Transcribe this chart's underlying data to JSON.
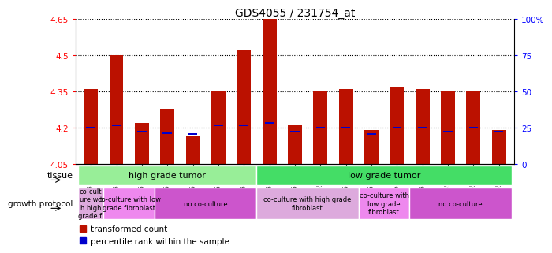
{
  "title": "GDS4055 / 231754_at",
  "samples": [
    "GSM665455",
    "GSM665447",
    "GSM665450",
    "GSM665452",
    "GSM665095",
    "GSM665102",
    "GSM665103",
    "GSM665071",
    "GSM665072",
    "GSM665073",
    "GSM665094",
    "GSM665069",
    "GSM665070",
    "GSM665042",
    "GSM665066",
    "GSM665067",
    "GSM665068"
  ],
  "red_values": [
    4.36,
    4.5,
    4.22,
    4.28,
    4.17,
    4.35,
    4.52,
    4.65,
    4.21,
    4.35,
    4.36,
    4.19,
    4.37,
    4.36,
    4.35,
    4.35,
    4.19
  ],
  "blue_values": [
    4.2,
    4.21,
    4.185,
    4.18,
    4.175,
    4.21,
    4.21,
    4.22,
    4.185,
    4.2,
    4.2,
    4.175,
    4.2,
    4.2,
    4.185,
    4.2,
    4.185
  ],
  "ymin": 4.05,
  "ymax": 4.65,
  "yticks": [
    4.05,
    4.2,
    4.35,
    4.5,
    4.65
  ],
  "right_yticks_pct": [
    0,
    25,
    50,
    75,
    100
  ],
  "right_yticklabels": [
    "0",
    "25",
    "50",
    "75",
    "100%"
  ],
  "tissue_groups": [
    {
      "label": "high grade tumor",
      "start": 0,
      "end": 7,
      "color": "#98EE98"
    },
    {
      "label": "low grade tumor",
      "start": 7,
      "end": 17,
      "color": "#44DD66"
    }
  ],
  "growth_groups": [
    {
      "label": "co-cult\nure wit\nh high\ngrade fi",
      "start": 0,
      "end": 1,
      "color": "#DDAADD"
    },
    {
      "label": "co-culture with low\ngrade fibroblast",
      "start": 1,
      "end": 3,
      "color": "#EE88EE"
    },
    {
      "label": "no co-culture",
      "start": 3,
      "end": 7,
      "color": "#CC55CC"
    },
    {
      "label": "co-culture with high grade\nfibroblast",
      "start": 7,
      "end": 11,
      "color": "#DDAADD"
    },
    {
      "label": "co-culture with\nlow grade\nfibroblast",
      "start": 11,
      "end": 13,
      "color": "#EE88EE"
    },
    {
      "label": "no co-culture",
      "start": 13,
      "end": 17,
      "color": "#CC55CC"
    }
  ],
  "legend_red": "transformed count",
  "legend_blue": "percentile rank within the sample",
  "bar_width": 0.55,
  "bar_bottom": 4.05,
  "red_color": "#BB1100",
  "blue_color": "#0000CC"
}
